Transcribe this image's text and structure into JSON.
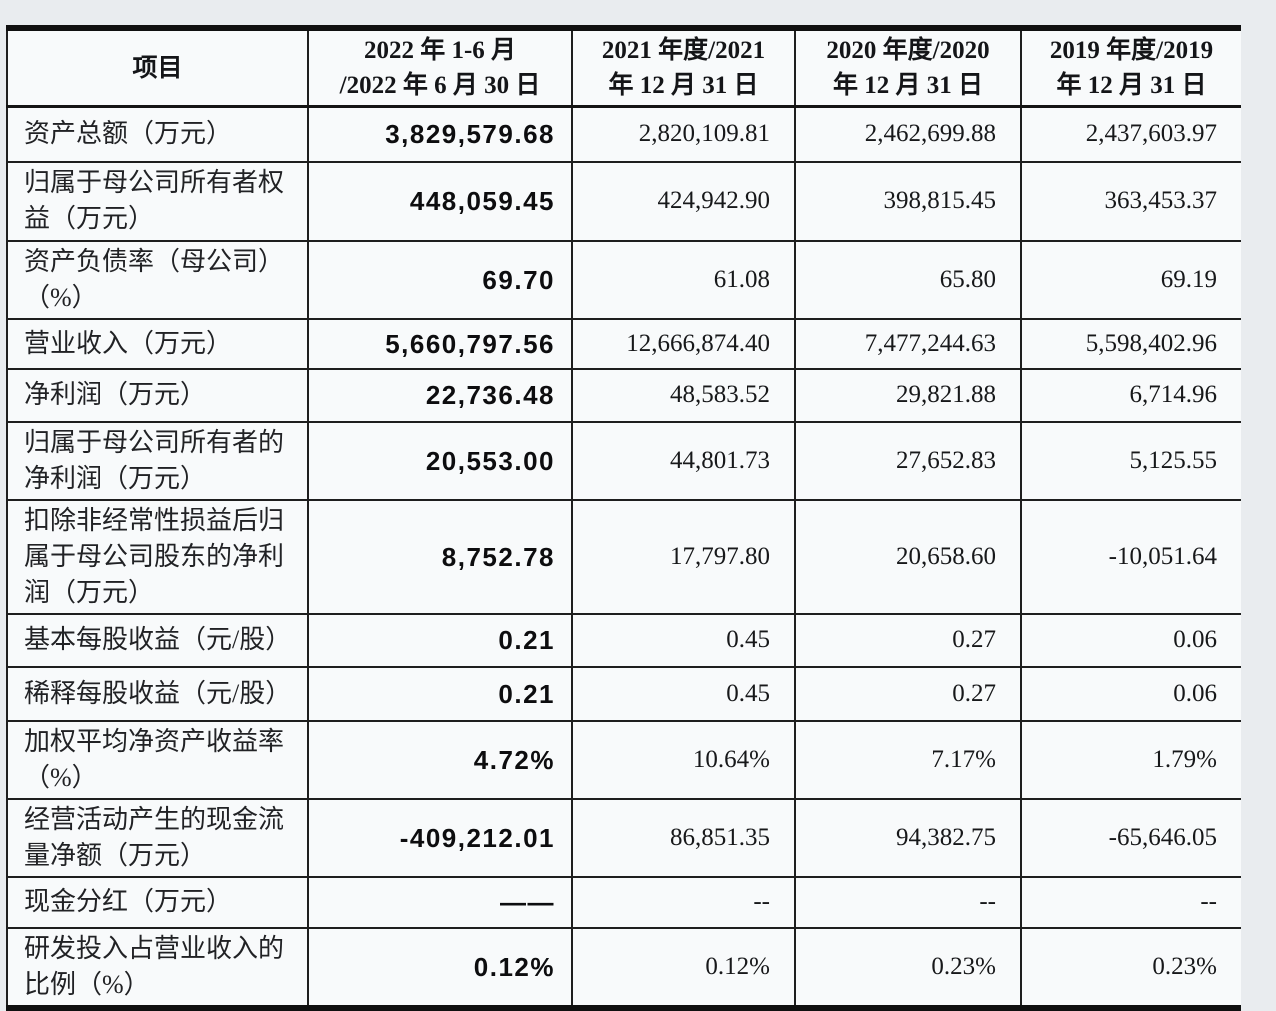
{
  "table": {
    "header": {
      "item": "项目",
      "periods": [
        {
          "line1": "2022 年 1-6 月",
          "line2": "/2022 年 6 月 30 日"
        },
        {
          "line1": "2021 年度/2021",
          "line2": "年 12 月 31 日"
        },
        {
          "line1": "2020 年度/2020",
          "line2": "年 12 月 31 日"
        },
        {
          "line1": "2019 年度/2019",
          "line2": "年 12 月 31 日"
        }
      ]
    },
    "rows": [
      {
        "label": "资产总额（万元）",
        "values": [
          "3,829,579.68",
          "2,820,109.81",
          "2,462,699.88",
          "2,437,603.97"
        ]
      },
      {
        "label": "归属于母公司所有者权益（万元）",
        "values": [
          "448,059.45",
          "424,942.90",
          "398,815.45",
          "363,453.37"
        ]
      },
      {
        "label": "资产负债率（母公司）（%）",
        "values": [
          "69.70",
          "61.08",
          "65.80",
          "69.19"
        ]
      },
      {
        "label": "营业收入（万元）",
        "values": [
          "5,660,797.56",
          "12,666,874.40",
          "7,477,244.63",
          "5,598,402.96"
        ]
      },
      {
        "label": "净利润（万元）",
        "values": [
          "22,736.48",
          "48,583.52",
          "29,821.88",
          "6,714.96"
        ]
      },
      {
        "label": "归属于母公司所有者的净利润（万元）",
        "values": [
          "20,553.00",
          "44,801.73",
          "27,652.83",
          "5,125.55"
        ]
      },
      {
        "label": "扣除非经常性损益后归属于母公司股东的净利润（万元）",
        "values": [
          "8,752.78",
          "17,797.80",
          "20,658.60",
          "-10,051.64"
        ]
      },
      {
        "label": "基本每股收益（元/股）",
        "values": [
          "0.21",
          "0.45",
          "0.27",
          "0.06"
        ]
      },
      {
        "label": "稀释每股收益（元/股）",
        "values": [
          "0.21",
          "0.45",
          "0.27",
          "0.06"
        ]
      },
      {
        "label": "加权平均净资产收益率（%）",
        "values": [
          "4.72%",
          "10.64%",
          "7.17%",
          "1.79%"
        ]
      },
      {
        "label": "经营活动产生的现金流量净额（万元）",
        "values": [
          "-409,212.01",
          "86,851.35",
          "94,382.75",
          "-65,646.05"
        ]
      },
      {
        "label": "现金分红（万元）",
        "values": [
          "——",
          "--",
          "--",
          "--"
        ]
      },
      {
        "label": "研发投入占营业收入的比例（%）",
        "values": [
          "0.12%",
          "0.12%",
          "0.23%",
          "0.23%"
        ]
      }
    ]
  }
}
